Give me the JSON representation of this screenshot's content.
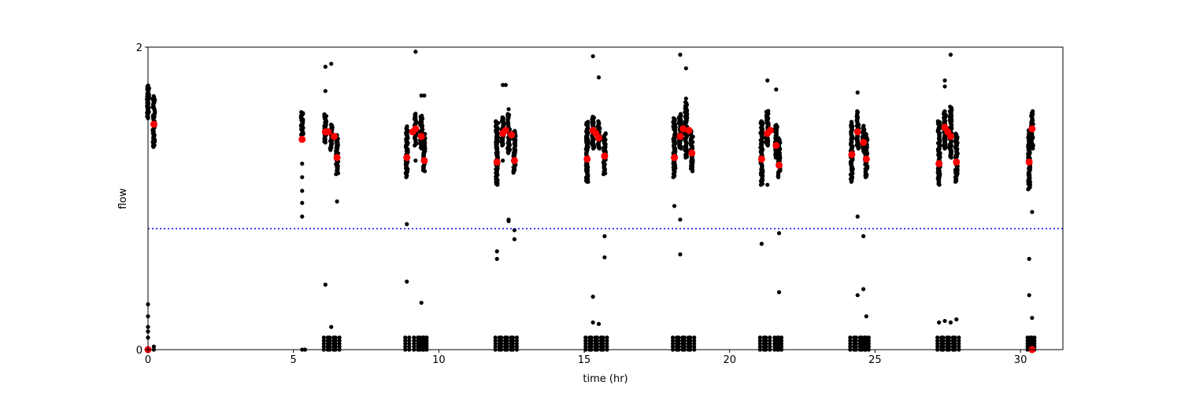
{
  "chart_data": {
    "type": "scatter",
    "title": "",
    "xlabel": "time (hr)",
    "ylabel": "flow",
    "xlim": [
      0,
      31.46
    ],
    "ylim": [
      0,
      2
    ],
    "xticks": [
      "0",
      "5",
      "10",
      "15",
      "20",
      "25",
      "30"
    ],
    "yticks": [
      "0",
      "2"
    ],
    "grid": false,
    "threshold_line": {
      "y": 0.8,
      "color": "#0000ff",
      "style": "dotted"
    },
    "colors": {
      "samples": "#000000",
      "means": "#ff0000"
    },
    "sample_columns": [
      {
        "x": 0.0,
        "range": [
          1.53,
          1.75
        ],
        "zero_cluster": false
      },
      {
        "x": 0.2,
        "range": [
          1.34,
          1.68
        ],
        "zero_cluster": false
      },
      {
        "x": 5.3,
        "range": [
          1.42,
          1.57
        ],
        "zero_cluster": false
      },
      {
        "x": 6.1,
        "range": [
          1.37,
          1.56
        ],
        "zero_cluster": true
      },
      {
        "x": 6.3,
        "range": [
          1.32,
          1.49
        ],
        "zero_cluster": true
      },
      {
        "x": 6.5,
        "range": [
          1.16,
          1.42
        ],
        "zero_cluster": true
      },
      {
        "x": 8.9,
        "range": [
          1.14,
          1.48
        ],
        "zero_cluster": true
      },
      {
        "x": 9.2,
        "range": [
          1.35,
          1.56
        ],
        "zero_cluster": true
      },
      {
        "x": 9.4,
        "range": [
          1.33,
          1.55
        ],
        "zero_cluster": true
      },
      {
        "x": 9.5,
        "range": [
          1.18,
          1.43
        ],
        "zero_cluster": true
      },
      {
        "x": 12.0,
        "range": [
          1.09,
          1.51
        ],
        "zero_cluster": true
      },
      {
        "x": 12.2,
        "range": [
          1.35,
          1.54
        ],
        "zero_cluster": true
      },
      {
        "x": 12.4,
        "range": [
          1.3,
          1.56
        ],
        "zero_cluster": true
      },
      {
        "x": 12.6,
        "range": [
          1.17,
          1.45
        ],
        "zero_cluster": true
      },
      {
        "x": 15.1,
        "range": [
          1.11,
          1.51
        ],
        "zero_cluster": true
      },
      {
        "x": 15.3,
        "range": [
          1.33,
          1.54
        ],
        "zero_cluster": true
      },
      {
        "x": 15.5,
        "range": [
          1.33,
          1.51
        ],
        "zero_cluster": true
      },
      {
        "x": 15.7,
        "range": [
          1.16,
          1.43
        ],
        "zero_cluster": true
      },
      {
        "x": 18.1,
        "range": [
          1.14,
          1.53
        ],
        "zero_cluster": true
      },
      {
        "x": 18.3,
        "range": [
          1.33,
          1.56
        ],
        "zero_cluster": true
      },
      {
        "x": 18.5,
        "range": [
          1.27,
          1.64
        ],
        "zero_cluster": true
      },
      {
        "x": 18.7,
        "range": [
          1.18,
          1.45
        ],
        "zero_cluster": true
      },
      {
        "x": 21.1,
        "range": [
          1.09,
          1.51
        ],
        "zero_cluster": true
      },
      {
        "x": 21.3,
        "range": [
          1.35,
          1.58
        ],
        "zero_cluster": true
      },
      {
        "x": 21.6,
        "range": [
          1.27,
          1.49
        ],
        "zero_cluster": true
      },
      {
        "x": 21.7,
        "range": [
          1.14,
          1.4
        ],
        "zero_cluster": true
      },
      {
        "x": 24.2,
        "range": [
          1.11,
          1.51
        ],
        "zero_cluster": true
      },
      {
        "x": 24.4,
        "range": [
          1.33,
          1.58
        ],
        "zero_cluster": true
      },
      {
        "x": 24.6,
        "range": [
          1.3,
          1.48
        ],
        "zero_cluster": true
      },
      {
        "x": 24.7,
        "range": [
          1.14,
          1.43
        ],
        "zero_cluster": true
      },
      {
        "x": 27.2,
        "range": [
          1.09,
          1.51
        ],
        "zero_cluster": true
      },
      {
        "x": 27.4,
        "range": [
          1.33,
          1.58
        ],
        "zero_cluster": true
      },
      {
        "x": 27.6,
        "range": [
          1.27,
          1.61
        ],
        "zero_cluster": true
      },
      {
        "x": 27.8,
        "range": [
          1.11,
          1.43
        ],
        "zero_cluster": true
      },
      {
        "x": 30.3,
        "range": [
          1.06,
          1.45
        ],
        "zero_cluster": true
      },
      {
        "x": 30.4,
        "range": [
          1.33,
          1.58
        ],
        "zero_cluster": true
      }
    ],
    "sample_outliers": [
      [
        0.0,
        0.3
      ],
      [
        0.0,
        0.22
      ],
      [
        0.0,
        0.15
      ],
      [
        0.0,
        0.12
      ],
      [
        0.0,
        0.08
      ],
      [
        0.0,
        0.0
      ],
      [
        0.2,
        0.02
      ],
      [
        0.2,
        0.0
      ],
      [
        5.3,
        1.23
      ],
      [
        5.3,
        1.14
      ],
      [
        5.3,
        1.05
      ],
      [
        5.3,
        0.97
      ],
      [
        5.3,
        0.88
      ],
      [
        5.3,
        0.0
      ],
      [
        5.4,
        0.0
      ],
      [
        6.1,
        1.71
      ],
      [
        6.1,
        1.87
      ],
      [
        6.1,
        0.43
      ],
      [
        6.3,
        1.89
      ],
      [
        6.3,
        0.15
      ],
      [
        6.5,
        0.98
      ],
      [
        8.9,
        0.83
      ],
      [
        8.9,
        0.45
      ],
      [
        9.2,
        1.97
      ],
      [
        9.2,
        1.25
      ],
      [
        9.4,
        1.68
      ],
      [
        9.4,
        0.31
      ],
      [
        9.5,
        1.68
      ],
      [
        12.0,
        0.65
      ],
      [
        12.0,
        0.6
      ],
      [
        12.2,
        1.75
      ],
      [
        12.3,
        1.75
      ],
      [
        12.2,
        1.25
      ],
      [
        12.4,
        1.59
      ],
      [
        12.4,
        0.85
      ],
      [
        12.4,
        0.86
      ],
      [
        12.6,
        0.73
      ],
      [
        12.6,
        0.79
      ],
      [
        15.3,
        1.94
      ],
      [
        15.5,
        1.8
      ],
      [
        15.7,
        0.75
      ],
      [
        15.7,
        0.61
      ],
      [
        15.1,
        1.11
      ],
      [
        15.3,
        0.35
      ],
      [
        15.3,
        0.18
      ],
      [
        15.5,
        0.17
      ],
      [
        18.3,
        1.95
      ],
      [
        18.5,
        1.86
      ],
      [
        18.5,
        1.66
      ],
      [
        18.1,
        0.95
      ],
      [
        18.3,
        0.86
      ],
      [
        18.3,
        0.63
      ],
      [
        21.3,
        1.78
      ],
      [
        21.6,
        1.72
      ],
      [
        21.1,
        0.7
      ],
      [
        21.3,
        1.09
      ],
      [
        21.7,
        0.77
      ],
      [
        21.7,
        0.38
      ],
      [
        24.4,
        1.7
      ],
      [
        24.4,
        0.88
      ],
      [
        24.6,
        0.75
      ],
      [
        24.6,
        0.4
      ],
      [
        24.4,
        0.36
      ],
      [
        24.7,
        0.22
      ],
      [
        27.4,
        1.78
      ],
      [
        27.4,
        1.74
      ],
      [
        27.6,
        1.95
      ],
      [
        27.2,
        0.18
      ],
      [
        27.4,
        0.19
      ],
      [
        27.6,
        0.18
      ],
      [
        27.8,
        0.2
      ],
      [
        30.4,
        0.91
      ],
      [
        30.3,
        0.6
      ],
      [
        30.3,
        0.36
      ],
      [
        30.4,
        0.21
      ]
    ],
    "means": [
      [
        0.0,
        0.0
      ],
      [
        0.2,
        1.49
      ],
      [
        5.3,
        1.39
      ],
      [
        6.1,
        1.44
      ],
      [
        6.2,
        1.44
      ],
      [
        6.4,
        1.41
      ],
      [
        6.5,
        1.27
      ],
      [
        8.9,
        1.27
      ],
      [
        9.1,
        1.44
      ],
      [
        9.2,
        1.46
      ],
      [
        9.4,
        1.41
      ],
      [
        9.5,
        1.25
      ],
      [
        12.0,
        1.24
      ],
      [
        12.2,
        1.43
      ],
      [
        12.3,
        1.45
      ],
      [
        12.5,
        1.42
      ],
      [
        12.6,
        1.25
      ],
      [
        15.1,
        1.26
      ],
      [
        15.3,
        1.45
      ],
      [
        15.4,
        1.43
      ],
      [
        15.5,
        1.4
      ],
      [
        15.7,
        1.28
      ],
      [
        18.1,
        1.27
      ],
      [
        18.3,
        1.41
      ],
      [
        18.4,
        1.46
      ],
      [
        18.6,
        1.45
      ],
      [
        18.7,
        1.3
      ],
      [
        21.1,
        1.26
      ],
      [
        21.3,
        1.43
      ],
      [
        21.4,
        1.45
      ],
      [
        21.6,
        1.35
      ],
      [
        21.7,
        1.22
      ],
      [
        24.2,
        1.29
      ],
      [
        24.4,
        1.44
      ],
      [
        24.6,
        1.37
      ],
      [
        24.7,
        1.26
      ],
      [
        27.2,
        1.23
      ],
      [
        27.4,
        1.47
      ],
      [
        27.5,
        1.44
      ],
      [
        27.6,
        1.41
      ],
      [
        27.8,
        1.24
      ],
      [
        30.3,
        1.24
      ],
      [
        30.4,
        1.46
      ],
      [
        30.4,
        0.0
      ]
    ]
  }
}
